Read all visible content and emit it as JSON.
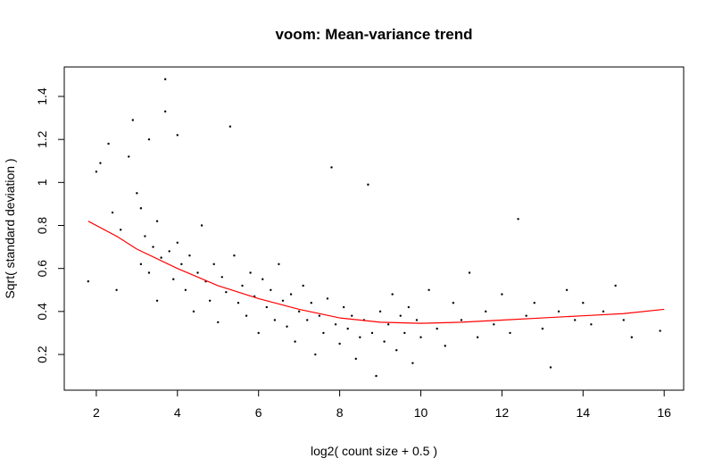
{
  "chart_data": {
    "type": "scatter",
    "title": "voom: Mean-variance trend",
    "x_label": "log2( count size + 0.5 )",
    "y_label": "Sqrt( standard deviation )",
    "xlim": [
      1.21,
      16.48
    ],
    "ylim": [
      0.034,
      1.537
    ],
    "xticks": [
      2,
      4,
      6,
      8,
      10,
      12,
      14,
      16
    ],
    "yticks": [
      0.2,
      0.4,
      0.6,
      0.8,
      1.0,
      1.2,
      1.4
    ],
    "series": [
      {
        "color": "#000000",
        "x": [
          1.8,
          2.0,
          2.1,
          2.3,
          2.4,
          2.5,
          2.6,
          2.8,
          2.9,
          3.0,
          3.1,
          3.1,
          3.2,
          3.3,
          3.3,
          3.4,
          3.5,
          3.5,
          3.6,
          3.7,
          3.7,
          3.8,
          3.9,
          4.0,
          4.0,
          4.1,
          4.2,
          4.3,
          4.4,
          4.5,
          4.6,
          4.7,
          4.8,
          4.9,
          5.0,
          5.1,
          5.2,
          5.3,
          5.4,
          5.5,
          5.6,
          5.7,
          5.8,
          5.9,
          6.0,
          6.1,
          6.2,
          6.3,
          6.4,
          6.5,
          6.6,
          6.7,
          6.8,
          6.9,
          7.0,
          7.1,
          7.2,
          7.3,
          7.4,
          7.5,
          7.6,
          7.7,
          7.8,
          7.9,
          8.0,
          8.1,
          8.2,
          8.3,
          8.4,
          8.5,
          8.6,
          8.7,
          8.8,
          8.9,
          9.0,
          9.1,
          9.2,
          9.3,
          9.4,
          9.5,
          9.6,
          9.7,
          9.8,
          9.9,
          10.0,
          10.2,
          10.4,
          10.6,
          10.8,
          11.0,
          11.2,
          11.4,
          11.6,
          11.8,
          12.0,
          12.2,
          12.4,
          12.6,
          12.8,
          13.0,
          13.2,
          13.4,
          13.6,
          13.8,
          14.0,
          14.2,
          14.5,
          14.8,
          15.0,
          15.2,
          15.9
        ],
        "values": [
          0.54,
          1.05,
          1.09,
          1.18,
          0.86,
          0.5,
          0.78,
          1.12,
          1.29,
          0.95,
          0.88,
          0.62,
          0.75,
          1.2,
          0.58,
          0.7,
          0.82,
          0.45,
          0.65,
          1.48,
          1.33,
          0.68,
          0.55,
          1.22,
          0.72,
          0.62,
          0.5,
          0.66,
          0.4,
          0.58,
          0.8,
          0.54,
          0.45,
          0.62,
          0.35,
          0.56,
          0.49,
          1.26,
          0.66,
          0.44,
          0.52,
          0.38,
          0.58,
          0.47,
          0.3,
          0.55,
          0.42,
          0.5,
          0.36,
          0.62,
          0.45,
          0.33,
          0.48,
          0.26,
          0.4,
          0.52,
          0.36,
          0.44,
          0.2,
          0.38,
          0.3,
          0.46,
          1.07,
          0.34,
          0.25,
          0.42,
          0.32,
          0.38,
          0.18,
          0.28,
          0.36,
          0.99,
          0.3,
          0.1,
          0.4,
          0.26,
          0.34,
          0.48,
          0.22,
          0.38,
          0.3,
          0.42,
          0.16,
          0.36,
          0.28,
          0.5,
          0.32,
          0.24,
          0.44,
          0.36,
          0.58,
          0.28,
          0.4,
          0.34,
          0.48,
          0.3,
          0.83,
          0.38,
          0.44,
          0.32,
          0.14,
          0.4,
          0.5,
          0.36,
          0.44,
          0.34,
          0.4,
          0.52,
          0.36,
          0.28,
          0.31
        ]
      },
      {
        "color": "#ff0000",
        "style": "line",
        "x": [
          1.8,
          2.5,
          3,
          4,
          5,
          6,
          7,
          8,
          9,
          10,
          11,
          12,
          13,
          14,
          15,
          16
        ],
        "values": [
          0.82,
          0.75,
          0.69,
          0.6,
          0.52,
          0.46,
          0.41,
          0.37,
          0.35,
          0.345,
          0.35,
          0.36,
          0.37,
          0.38,
          0.39,
          0.41
        ]
      }
    ]
  }
}
